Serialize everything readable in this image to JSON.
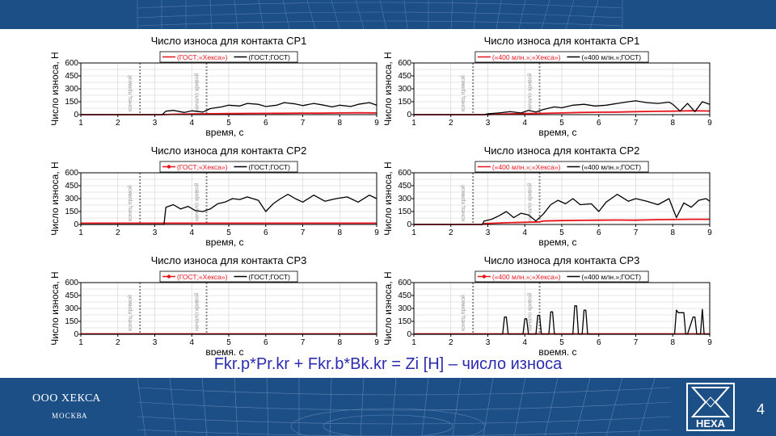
{
  "slide": {
    "formula": "Fkr.p*Pr.kr + Fkr.b*Bk.kr = Zi [H] – число износа",
    "company": "ООО ХЕКСА",
    "city": "МОСКВА",
    "logo_text": "HEXA",
    "page_number": "4"
  },
  "colors": {
    "band": "#1d4f87",
    "red_series": "#e8141c",
    "black_series": "#000000",
    "formula": "#2b2bb0"
  },
  "chart_data": [
    {
      "type": "line",
      "title": "Число износа для контакта CP1",
      "xlabel": "время, с",
      "ylabel": "Число износа, Н",
      "xlim": [
        1,
        9
      ],
      "ylim": [
        0,
        600
      ],
      "xticks": [
        1,
        2,
        3,
        4,
        5,
        6,
        7,
        8,
        9
      ],
      "yticks": [
        0,
        150,
        300,
        450,
        600
      ],
      "vlines": [
        {
          "x": 2.6,
          "label": "конец прямой"
        },
        {
          "x": 4.4,
          "label": "начало кривой"
        }
      ],
      "legend": "top",
      "grid": true,
      "series": [
        {
          "name": "(ГОСТ;«Хекса»)",
          "color": "#e8141c",
          "marker": false,
          "x": [
            1,
            3.2,
            3.5,
            4,
            4.5,
            5,
            5.5,
            6,
            6.5,
            7,
            7.5,
            8,
            8.5,
            9
          ],
          "y": [
            0,
            0,
            5,
            8,
            10,
            12,
            14,
            15,
            16,
            18,
            17,
            20,
            22,
            20
          ]
        },
        {
          "name": "(ГОСТ;ГОСТ)",
          "color": "#000000",
          "marker": false,
          "x": [
            1,
            3.2,
            3.3,
            3.5,
            3.8,
            4.0,
            4.3,
            4.5,
            4.8,
            5.0,
            5.3,
            5.5,
            5.8,
            6.0,
            6.3,
            6.5,
            6.8,
            7.0,
            7.3,
            7.5,
            7.8,
            8.0,
            8.3,
            8.5,
            8.8,
            9.0
          ],
          "y": [
            0,
            0,
            40,
            50,
            25,
            45,
            30,
            70,
            90,
            110,
            100,
            130,
            120,
            95,
            110,
            140,
            125,
            105,
            130,
            115,
            90,
            110,
            95,
            120,
            140,
            110
          ]
        }
      ]
    },
    {
      "type": "line",
      "title": "Число износа для контакта CP1",
      "xlabel": "время, с",
      "ylabel": "Число износа, Н",
      "xlim": [
        1,
        9
      ],
      "ylim": [
        0,
        600
      ],
      "xticks": [
        1,
        2,
        3,
        4,
        5,
        6,
        7,
        8,
        9
      ],
      "yticks": [
        0,
        150,
        300,
        450,
        600
      ],
      "vlines": [
        {
          "x": 2.6,
          "label": "конец прямой"
        },
        {
          "x": 4.4,
          "label": "начало кривой"
        }
      ],
      "legend": "top",
      "grid": true,
      "series": [
        {
          "name": "(«400 млн.»;«Хекса»)",
          "color": "#e8141c",
          "marker": false,
          "x": [
            1,
            2.9,
            3.5,
            4,
            4.5,
            5,
            5.5,
            6,
            6.5,
            7,
            7.5,
            8,
            8.5,
            9
          ],
          "y": [
            0,
            0,
            8,
            12,
            15,
            20,
            25,
            28,
            30,
            35,
            38,
            40,
            45,
            42
          ]
        },
        {
          "name": "(«400 млн.»;ГОСТ)",
          "color": "#000000",
          "marker": false,
          "x": [
            1,
            2.9,
            3.0,
            3.3,
            3.6,
            3.9,
            4.1,
            4.3,
            4.5,
            4.8,
            5.0,
            5.3,
            5.6,
            5.9,
            6.2,
            6.5,
            6.8,
            7.0,
            7.3,
            7.6,
            7.9,
            8.0,
            8.2,
            8.4,
            8.6,
            8.8,
            9.0
          ],
          "y": [
            0,
            0,
            10,
            20,
            35,
            20,
            50,
            30,
            60,
            90,
            80,
            110,
            120,
            100,
            110,
            130,
            150,
            160,
            140,
            130,
            145,
            120,
            40,
            130,
            35,
            150,
            120
          ]
        }
      ]
    },
    {
      "type": "line",
      "title": "Число износа для контакта CP2",
      "xlabel": "время, с",
      "ylabel": "Число износа, Н",
      "xlim": [
        1,
        9
      ],
      "ylim": [
        0,
        600
      ],
      "xticks": [
        1,
        2,
        3,
        4,
        5,
        6,
        7,
        8,
        9
      ],
      "yticks": [
        0,
        150,
        300,
        450,
        600
      ],
      "vlines": [
        {
          "x": 2.6,
          "label": "конец прямой"
        },
        {
          "x": 4.4,
          "label": "начало кривой"
        }
      ],
      "legend": "top",
      "grid": true,
      "series": [
        {
          "name": "(ГОСТ;«Хекса»)",
          "color": "#e8141c",
          "marker": true,
          "x": [
            1,
            2,
            3,
            4,
            5,
            6,
            7,
            8,
            9
          ],
          "y": [
            15,
            15,
            15,
            15,
            15,
            15,
            15,
            15,
            15
          ]
        },
        {
          "name": "(ГОСТ;ГОСТ)",
          "color": "#000000",
          "marker": false,
          "x": [
            1,
            3.25,
            3.3,
            3.5,
            3.7,
            3.9,
            4.1,
            4.3,
            4.5,
            4.7,
            4.9,
            5.1,
            5.3,
            5.5,
            5.8,
            6.0,
            6.2,
            6.4,
            6.6,
            6.8,
            7.0,
            7.3,
            7.6,
            7.9,
            8.2,
            8.5,
            8.8,
            9.0
          ],
          "y": [
            0,
            0,
            200,
            230,
            180,
            210,
            160,
            150,
            180,
            240,
            260,
            300,
            290,
            320,
            280,
            150,
            240,
            300,
            350,
            300,
            260,
            340,
            270,
            300,
            320,
            260,
            340,
            300
          ]
        }
      ]
    },
    {
      "type": "line",
      "title": "Число износа для контакта CP2",
      "xlabel": "время, с",
      "ylabel": "Число износа, Н",
      "xlim": [
        1,
        9
      ],
      "ylim": [
        0,
        600
      ],
      "xticks": [
        1,
        2,
        3,
        4,
        5,
        6,
        7,
        8,
        9
      ],
      "yticks": [
        0,
        150,
        300,
        450,
        600
      ],
      "vlines": [
        {
          "x": 2.6,
          "label": "конец прямой"
        },
        {
          "x": 4.4,
          "label": "начало кривой"
        }
      ],
      "legend": "top",
      "grid": true,
      "series": [
        {
          "name": "(«400 млн.»;«Хекса»)",
          "color": "#e8141c",
          "marker": false,
          "x": [
            1,
            2.85,
            2.9,
            3.5,
            4,
            4.4,
            4.5,
            5,
            5.5,
            6,
            6.5,
            7,
            7.5,
            8,
            8.5,
            9
          ],
          "y": [
            0,
            0,
            10,
            20,
            25,
            30,
            40,
            45,
            48,
            50,
            52,
            50,
            55,
            57,
            60,
            60
          ]
        },
        {
          "name": "(«400 млн.»;ГОСТ)",
          "color": "#000000",
          "marker": false,
          "x": [
            1,
            2.85,
            2.9,
            3.1,
            3.3,
            3.5,
            3.7,
            3.9,
            4.1,
            4.3,
            4.5,
            4.7,
            4.9,
            5.1,
            5.3,
            5.5,
            5.8,
            6.0,
            6.2,
            6.5,
            6.8,
            7.0,
            7.3,
            7.6,
            7.9,
            8.1,
            8.3,
            8.5,
            8.7,
            8.9,
            9.0
          ],
          "y": [
            0,
            0,
            40,
            60,
            100,
            150,
            80,
            130,
            110,
            40,
            120,
            230,
            280,
            240,
            300,
            230,
            240,
            150,
            260,
            350,
            270,
            300,
            270,
            230,
            300,
            80,
            250,
            200,
            280,
            300,
            270
          ]
        }
      ]
    },
    {
      "type": "line",
      "title": "Число износа для контакта CP3",
      "xlabel": "время, с",
      "ylabel": "Число износа, Н",
      "xlim": [
        1,
        9
      ],
      "ylim": [
        0,
        600
      ],
      "xticks": [
        1,
        2,
        3,
        4,
        5,
        6,
        7,
        8,
        9
      ],
      "yticks": [
        0,
        150,
        300,
        450,
        600
      ],
      "vlines": [
        {
          "x": 2.6,
          "label": "конец прямой"
        },
        {
          "x": 4.4,
          "label": "начало кривой"
        }
      ],
      "legend": "top",
      "grid": true,
      "series": [
        {
          "name": "(ГОСТ;«Хекса»)",
          "color": "#e8141c",
          "marker": true,
          "x": [
            1,
            2,
            3,
            4,
            5,
            6,
            7,
            8,
            9
          ],
          "y": [
            5,
            5,
            5,
            5,
            5,
            5,
            5,
            5,
            5
          ]
        },
        {
          "name": "(ГОСТ;ГОСТ)",
          "color": "#000000",
          "marker": false,
          "x": [
            1,
            9
          ],
          "y": [
            0,
            0
          ]
        }
      ]
    },
    {
      "type": "line",
      "title": "Число износа для контакта CP3",
      "xlabel": "время, с",
      "ylabel": "Число износа, Н",
      "xlim": [
        1,
        9
      ],
      "ylim": [
        0,
        600
      ],
      "xticks": [
        1,
        2,
        3,
        4,
        5,
        6,
        7,
        8,
        9
      ],
      "yticks": [
        0,
        150,
        300,
        450,
        600
      ],
      "vlines": [
        {
          "x": 2.6,
          "label": "конец прямой"
        },
        {
          "x": 4.4,
          "label": "начало кривой"
        }
      ],
      "legend": "top",
      "grid": true,
      "series": [
        {
          "name": "(«400 млн.»;«Хекса»)",
          "color": "#e8141c",
          "marker": true,
          "x": [
            1,
            2,
            3,
            4,
            5,
            6,
            7,
            8,
            9
          ],
          "y": [
            5,
            5,
            5,
            5,
            5,
            5,
            5,
            5,
            5
          ]
        },
        {
          "name": "(«400 млн.»;ГОСТ)",
          "color": "#000000",
          "marker": false,
          "x": [
            1,
            3.4,
            3.45,
            3.5,
            3.55,
            3.95,
            4.0,
            4.05,
            4.1,
            4.3,
            4.35,
            4.4,
            4.45,
            4.65,
            4.7,
            4.75,
            4.8,
            5.3,
            5.35,
            5.4,
            5.45,
            5.55,
            5.6,
            5.65,
            5.7,
            8.05,
            8.1,
            8.15,
            8.3,
            8.35,
            8.4,
            8.55,
            8.6,
            8.65,
            8.75,
            8.8,
            8.85,
            9.0
          ],
          "y": [
            0,
            0,
            200,
            200,
            0,
            0,
            180,
            180,
            0,
            0,
            220,
            220,
            0,
            0,
            260,
            260,
            0,
            0,
            330,
            330,
            0,
            0,
            280,
            280,
            0,
            0,
            280,
            250,
            250,
            0,
            0,
            200,
            200,
            0,
            0,
            290,
            0,
            0
          ]
        }
      ]
    }
  ]
}
